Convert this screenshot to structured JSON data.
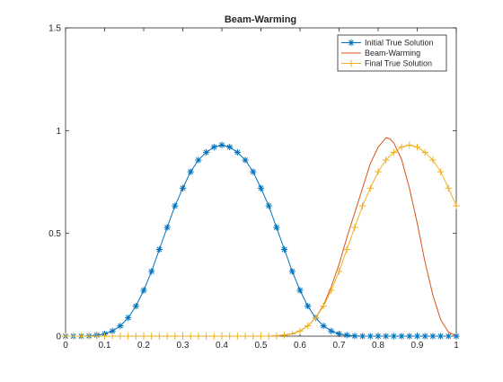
{
  "chart_data": {
    "type": "line",
    "title": "Beam-Warming",
    "xlabel": "",
    "ylabel": "",
    "xlim": [
      0,
      1
    ],
    "ylim": [
      0,
      1.5
    ],
    "x_ticks": [
      "0",
      "0.1",
      "0.2",
      "0.3",
      "0.4",
      "0.5",
      "0.6",
      "0.7",
      "0.8",
      "0.9",
      "1"
    ],
    "y_ticks": [
      "0",
      "0.5",
      "1",
      "1.5"
    ],
    "grid": false,
    "legend_position": "top-right",
    "series": [
      {
        "name": "Initial True Solution",
        "color": "#0072BD",
        "marker": "asterisk",
        "x": [
          0,
          0.02,
          0.04,
          0.06,
          0.08,
          0.1,
          0.12,
          0.14,
          0.16,
          0.18,
          0.2,
          0.22,
          0.24,
          0.26,
          0.28,
          0.3,
          0.32,
          0.34,
          0.36,
          0.38,
          0.4,
          0.42,
          0.44,
          0.46,
          0.48,
          0.5,
          0.52,
          0.54,
          0.56,
          0.58,
          0.6,
          0.62,
          0.64,
          0.66,
          0.68,
          0.7,
          0.72,
          0.74,
          0.76,
          0.78,
          0.8,
          0.82,
          0.84,
          0.86,
          0.88,
          0.9,
          0.92,
          0.94,
          0.96,
          0.98,
          1.0
        ],
        "y": [
          0.0,
          0.0,
          0.0,
          0.001,
          0.005,
          0.011,
          0.025,
          0.05,
          0.089,
          0.146,
          0.223,
          0.315,
          0.422,
          0.529,
          0.634,
          0.72,
          0.8,
          0.857,
          0.894,
          0.92,
          0.93,
          0.92,
          0.894,
          0.857,
          0.8,
          0.72,
          0.634,
          0.529,
          0.422,
          0.315,
          0.223,
          0.146,
          0.089,
          0.05,
          0.025,
          0.011,
          0.005,
          0.001,
          0.0,
          0.0,
          0.0,
          0.0,
          0.0,
          0.0,
          0.0,
          0.0,
          0.0,
          0.0,
          0.0,
          0.0,
          0.0
        ],
        "y_values_note_removed": true
      },
      {
        "name": "Beam-Warming",
        "color": "#D95319",
        "marker": "none",
        "x": [
          0.5,
          0.52,
          0.54,
          0.56,
          0.58,
          0.6,
          0.62,
          0.64,
          0.66,
          0.68,
          0.7,
          0.72,
          0.74,
          0.76,
          0.78,
          0.8,
          0.82,
          0.83,
          0.84,
          0.86,
          0.88,
          0.9,
          0.92,
          0.94,
          0.96,
          0.98,
          1.0
        ],
        "y": [
          0.0,
          0.0,
          0.002,
          0.006,
          0.012,
          0.025,
          0.05,
          0.09,
          0.15,
          0.24,
          0.35,
          0.48,
          0.6,
          0.72,
          0.84,
          0.92,
          0.965,
          0.96,
          0.94,
          0.86,
          0.72,
          0.55,
          0.36,
          0.2,
          0.08,
          0.02,
          0.0
        ]
      },
      {
        "name": "Final True Solution",
        "color": "#EDB120",
        "marker": "plus",
        "x": [
          0,
          0.02,
          0.04,
          0.06,
          0.08,
          0.1,
          0.12,
          0.14,
          0.16,
          0.18,
          0.2,
          0.22,
          0.24,
          0.26,
          0.28,
          0.3,
          0.32,
          0.34,
          0.36,
          0.38,
          0.4,
          0.42,
          0.44,
          0.46,
          0.48,
          0.5,
          0.52,
          0.54,
          0.56,
          0.58,
          0.6,
          0.62,
          0.64,
          0.66,
          0.68,
          0.7,
          0.72,
          0.74,
          0.76,
          0.78,
          0.8,
          0.82,
          0.84,
          0.86,
          0.88,
          0.9,
          0.92,
          0.94,
          0.96,
          0.98,
          1.0
        ],
        "y": [
          0.0,
          0.0,
          0.0,
          0.0,
          0.0,
          0.0,
          0.0,
          0.0,
          0.0,
          0.0,
          0.0,
          0.0,
          0.0,
          0.0,
          0.0,
          0.0,
          0.0,
          0.0,
          0.0,
          0.0,
          0.0,
          0.0,
          0.0,
          0.0,
          0.0,
          0.0,
          0.0,
          0.001,
          0.005,
          0.011,
          0.025,
          0.05,
          0.089,
          0.146,
          0.223,
          0.315,
          0.422,
          0.529,
          0.634,
          0.72,
          0.8,
          0.857,
          0.894,
          0.92,
          0.93,
          0.92,
          0.894,
          0.857,
          0.8,
          0.72,
          0.634
        ]
      }
    ]
  }
}
